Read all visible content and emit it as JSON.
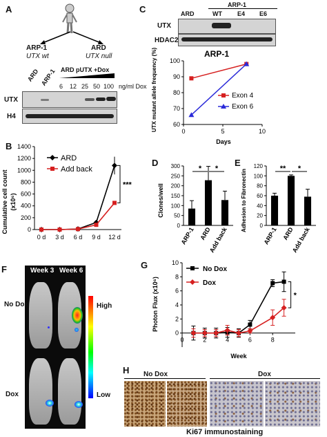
{
  "panels": {
    "A": {
      "label": "A",
      "arp1": "ARP-1",
      "utx_wt": "UTX wt",
      "ard": "ARD",
      "utx_null": "UTX null",
      "lane_ard": "ARD",
      "lane_arp1": "ARP-1",
      "treatment": "ARD pUTX +Dox",
      "doses": [
        "6",
        "12",
        "25",
        "50",
        "100"
      ],
      "dose_unit": "ng/ml Dox",
      "row1": "UTX",
      "row2": "H4"
    },
    "B": {
      "label": "B",
      "ylabel": "Cumulative cell count",
      "yunit": "(x10⁶)",
      "series_ard": "ARD",
      "series_add": "Add back",
      "sig": "***"
    },
    "C": {
      "label": "C",
      "header": "ARP-1",
      "lanes": [
        "ARD",
        "WT",
        "E4",
        "E6"
      ],
      "row1": "UTX",
      "row2": "HDAC2",
      "title": "ARP-1",
      "ylabel": "UTX mutant allele frequency (%)",
      "xlabel": "Days",
      "legend": [
        "Exon 4",
        "Exon 6"
      ]
    },
    "D": {
      "label": "D",
      "ylabel": "Clones/well",
      "cats": [
        "ARP-1",
        "ARD",
        "Add back"
      ],
      "sig": [
        "*",
        "*"
      ]
    },
    "E": {
      "label": "E",
      "ylabel": "Adhesion to Fibronectin",
      "cats": [
        "ARP-1",
        "ARD",
        "Add back"
      ],
      "sig": [
        "**",
        "*"
      ]
    },
    "F": {
      "label": "F",
      "week3": "Week 3",
      "week6": "Week 6",
      "nodox": "No Dox",
      "dox": "Dox",
      "high": "High",
      "low": "Low"
    },
    "G": {
      "label": "G",
      "ylabel": "Photon Flux (x10⁶)",
      "xlabel": "Week",
      "legend": [
        "No Dox",
        "Dox"
      ],
      "sig": "*"
    },
    "H": {
      "label": "H",
      "nodox": "No Dox",
      "dox": "Dox",
      "caption": "Ki67 immunostaining"
    }
  },
  "colors": {
    "red": "#d62020",
    "blue": "#2b2bd9",
    "black": "#000000"
  },
  "chart_data": [
    {
      "id": "B",
      "type": "line",
      "categories": [
        "0 d",
        "3 d",
        "6 d",
        "9 d",
        "12 d"
      ],
      "series": [
        {
          "name": "ARD",
          "values": [
            0,
            0,
            10,
            120,
            1080
          ],
          "err": [
            0,
            0,
            5,
            40,
            150
          ],
          "color": "#000000"
        },
        {
          "name": "Add back",
          "values": [
            0,
            0,
            8,
            80,
            450
          ],
          "err": [
            0,
            0,
            3,
            20,
            20
          ],
          "color": "#d62020"
        }
      ],
      "ylim": [
        0,
        1400
      ],
      "yticks": [
        0,
        200,
        400,
        600,
        800,
        1000,
        1200,
        1400
      ]
    },
    {
      "id": "C",
      "type": "line",
      "x_points": [
        {
          "name": "Exon 4",
          "x": [
            1,
            8
          ],
          "y": [
            89,
            98
          ],
          "color": "#d62020"
        },
        {
          "name": "Exon 6",
          "x": [
            1,
            8
          ],
          "y": [
            66,
            98
          ],
          "color": "#2b2bd9"
        }
      ],
      "xlim": [
        0,
        10
      ],
      "xticks": [
        0,
        5,
        10
      ],
      "ylim": [
        60,
        100
      ],
      "yticks": [
        60,
        70,
        80,
        90,
        100
      ]
    },
    {
      "id": "D",
      "type": "bar",
      "categories": [
        "ARP-1",
        "ARD",
        "Add back"
      ],
      "values": [
        85,
        228,
        128
      ],
      "err": [
        40,
        70,
        45
      ],
      "ylim": [
        0,
        300
      ],
      "yticks": [
        0,
        50,
        100,
        150,
        200,
        250,
        300
      ]
    },
    {
      "id": "E",
      "type": "bar",
      "categories": [
        "ARP-1",
        "ARD",
        "Add back"
      ],
      "values": [
        60,
        100,
        58
      ],
      "err": [
        5,
        2,
        15
      ],
      "ylim": [
        0,
        120
      ],
      "yticks": [
        0,
        20,
        40,
        60,
        80,
        100,
        120
      ]
    },
    {
      "id": "G",
      "type": "line",
      "x": [
        1,
        2,
        3,
        4,
        5,
        6,
        8,
        9
      ],
      "series": [
        {
          "name": "No Dox",
          "values": [
            0,
            0,
            0,
            0.1,
            0,
            1.2,
            7.1,
            7.3
          ],
          "err": [
            1,
            0.7,
            0.7,
            0.7,
            0.6,
            0.6,
            0.5,
            1.4
          ],
          "color": "#000000"
        },
        {
          "name": "Dox",
          "values": [
            0,
            0,
            0,
            0.4,
            0,
            0.3,
            2.2,
            3.6
          ],
          "err": [
            0.6,
            0.5,
            0.5,
            0.7,
            0.5,
            0.3,
            1.1,
            1.2
          ],
          "color": "#d62020"
        }
      ],
      "xlim": [
        0,
        10
      ],
      "xticks": [
        0,
        2,
        4,
        6,
        8
      ],
      "ylim": [
        -2,
        10
      ],
      "yticks": [
        0,
        2,
        4,
        6,
        8,
        10
      ]
    }
  ]
}
